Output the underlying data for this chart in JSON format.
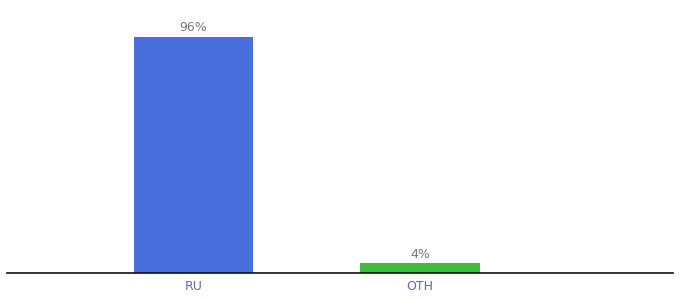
{
  "categories": [
    "RU",
    "OTH"
  ],
  "values": [
    96,
    4
  ],
  "bar_colors": [
    "#4a6edb",
    "#3dbb3d"
  ],
  "label_texts": [
    "96%",
    "4%"
  ],
  "background_color": "#ffffff",
  "ylim": [
    0,
    108
  ],
  "xlim": [
    0.0,
    1.0
  ],
  "bar_width": 0.18,
  "x_positions": [
    0.28,
    0.62
  ],
  "label_fontsize": 9,
  "tick_fontsize": 9,
  "tick_color": "#6666aa"
}
